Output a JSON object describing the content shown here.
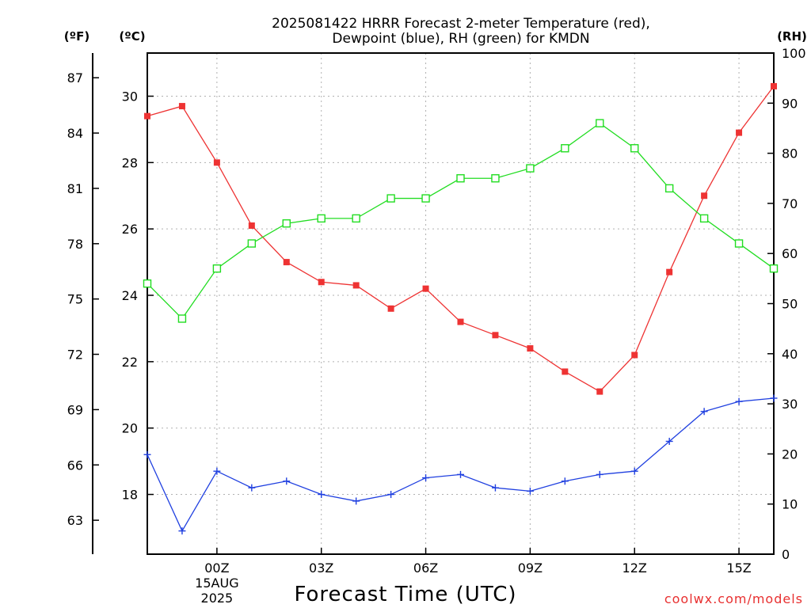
{
  "title_line1": "2025081422 HRRR Forecast 2-meter Temperature (red),",
  "title_line2": "Dewpoint (blue), RH (green) for KMDN",
  "units": {
    "fahrenheit": "(ºF)",
    "celsius": "(ºC)",
    "rh": "(RH)"
  },
  "credit": "coolwx.com/models",
  "colors": {
    "temperature": "#ee3333",
    "dewpoint": "#2040e0",
    "rh": "#22dd22",
    "grid": "#b0b0b0",
    "credit": "#e83030"
  },
  "chart_data": {
    "type": "line",
    "xlabel": "Forecast Time (UTC)",
    "x": [
      "22Z",
      "23Z",
      "00Z",
      "01Z",
      "02Z",
      "03Z",
      "04Z",
      "05Z",
      "06Z",
      "07Z",
      "08Z",
      "09Z",
      "10Z",
      "11Z",
      "12Z",
      "13Z",
      "14Z",
      "15Z",
      "16Z"
    ],
    "x_ticks": [
      {
        "index": 2,
        "label": "00Z",
        "sub1": "15AUG",
        "sub2": "2025"
      },
      {
        "index": 5,
        "label": "03Z"
      },
      {
        "index": 8,
        "label": "06Z"
      },
      {
        "index": 11,
        "label": "09Z"
      },
      {
        "index": 14,
        "label": "12Z"
      },
      {
        "index": 17,
        "label": "15Z"
      }
    ],
    "y_celsius": {
      "ylim": [
        16.2,
        31.3
      ],
      "ticks": [
        18,
        20,
        22,
        24,
        26,
        28,
        30
      ]
    },
    "y_fahrenheit": {
      "ticks": [
        63,
        66,
        69,
        72,
        75,
        78,
        81,
        84,
        87
      ]
    },
    "y_rh": {
      "ylim": [
        0,
        100
      ],
      "ticks": [
        0,
        10,
        20,
        30,
        40,
        50,
        60,
        70,
        80,
        90,
        100
      ]
    },
    "grid": true,
    "series": [
      {
        "name": "Temperature",
        "axis": "celsius",
        "marker": "filled-square",
        "values": [
          29.4,
          29.7,
          28.0,
          26.1,
          25.0,
          24.4,
          24.3,
          23.6,
          24.2,
          23.2,
          22.8,
          22.4,
          21.7,
          21.1,
          22.2,
          24.7,
          27.0,
          28.9,
          30.3
        ]
      },
      {
        "name": "Dewpoint",
        "axis": "celsius",
        "marker": "plus",
        "values": [
          19.2,
          16.9,
          18.7,
          18.2,
          18.4,
          18.0,
          17.8,
          18.0,
          18.5,
          18.6,
          18.2,
          18.1,
          18.4,
          18.6,
          18.7,
          19.6,
          20.5,
          20.8,
          20.9
        ]
      },
      {
        "name": "RH",
        "axis": "rh",
        "marker": "open-square",
        "values": [
          54,
          47,
          57,
          62,
          66,
          67,
          67,
          71,
          71,
          75,
          75,
          77,
          81,
          86,
          81,
          73,
          67,
          62,
          57
        ]
      }
    ]
  }
}
